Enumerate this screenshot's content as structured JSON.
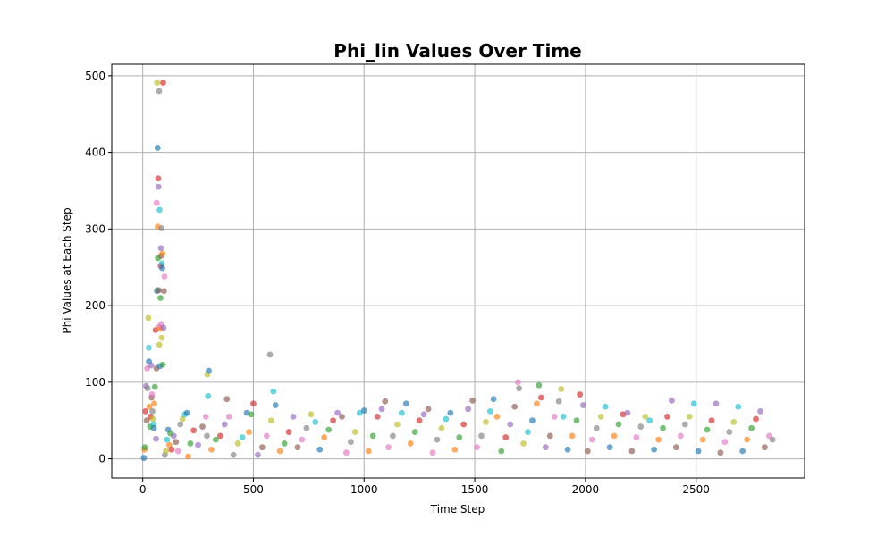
{
  "chart_data": {
    "type": "scatter",
    "title": "Phi_lin Values Over Time",
    "xlabel": "Time Step",
    "ylabel": "Phi Values at Each Step",
    "xlim": [
      -140,
      2990
    ],
    "ylim": [
      -25,
      515
    ],
    "x_ticks": [
      0,
      500,
      1000,
      1500,
      2000,
      2500
    ],
    "y_ticks": [
      0,
      100,
      200,
      300,
      400,
      500
    ],
    "grid": true,
    "legend": "none",
    "marker_alpha": 0.65,
    "colors": [
      "#1f77b4",
      "#ff7f0e",
      "#2ca02c",
      "#d62728",
      "#9467bd",
      "#8c564b",
      "#e377c2",
      "#7f7f7f",
      "#bcbd22",
      "#17becf"
    ],
    "points": [
      [
        5,
        1
      ],
      [
        8,
        12
      ],
      [
        9,
        15
      ],
      [
        12,
        62
      ],
      [
        15,
        95
      ],
      [
        18,
        50
      ],
      [
        20,
        118
      ],
      [
        22,
        92
      ],
      [
        25,
        184
      ],
      [
        27,
        145
      ],
      [
        28,
        127
      ],
      [
        30,
        68
      ],
      [
        33,
        42
      ],
      [
        35,
        55
      ],
      [
        38,
        122
      ],
      [
        40,
        80
      ],
      [
        42,
        84
      ],
      [
        44,
        62
      ],
      [
        46,
        52
      ],
      [
        48,
        45
      ],
      [
        50,
        40
      ],
      [
        52,
        72
      ],
      [
        55,
        94
      ],
      [
        58,
        168
      ],
      [
        60,
        26
      ],
      [
        62,
        118
      ],
      [
        63,
        334
      ],
      [
        64,
        219
      ],
      [
        65,
        491
      ],
      [
        66,
        220
      ],
      [
        67,
        406
      ],
      [
        68,
        303
      ],
      [
        69,
        262
      ],
      [
        70,
        366
      ],
      [
        71,
        355
      ],
      [
        72,
        220
      ],
      [
        73,
        172
      ],
      [
        74,
        480
      ],
      [
        75,
        149
      ],
      [
        76,
        325
      ],
      [
        78,
        121
      ],
      [
        79,
        170
      ],
      [
        80,
        210
      ],
      [
        81,
        252
      ],
      [
        82,
        275
      ],
      [
        83,
        265
      ],
      [
        84,
        176
      ],
      [
        85,
        301
      ],
      [
        86,
        158
      ],
      [
        87,
        255
      ],
      [
        88,
        249
      ],
      [
        89,
        268
      ],
      [
        90,
        123
      ],
      [
        92,
        491
      ],
      [
        94,
        171
      ],
      [
        96,
        219
      ],
      [
        98,
        238
      ],
      [
        100,
        5
      ],
      [
        105,
        10
      ],
      [
        110,
        25
      ],
      [
        115,
        38
      ],
      [
        120,
        18
      ],
      [
        125,
        33
      ],
      [
        130,
        12
      ],
      [
        140,
        30
      ],
      [
        150,
        22
      ],
      [
        160,
        10
      ],
      [
        170,
        45
      ],
      [
        180,
        52
      ],
      [
        190,
        58
      ],
      [
        200,
        60
      ],
      [
        205,
        3
      ],
      [
        215,
        20
      ],
      [
        230,
        37
      ],
      [
        250,
        18
      ],
      [
        270,
        42
      ],
      [
        285,
        55
      ],
      [
        290,
        30
      ],
      [
        292,
        110
      ],
      [
        295,
        82
      ],
      [
        298,
        115
      ],
      [
        310,
        12
      ],
      [
        330,
        25
      ],
      [
        350,
        30
      ],
      [
        370,
        45
      ],
      [
        380,
        78
      ],
      [
        390,
        55
      ],
      [
        410,
        5
      ],
      [
        430,
        20
      ],
      [
        450,
        28
      ],
      [
        470,
        60
      ],
      [
        480,
        35
      ],
      [
        490,
        58
      ],
      [
        500,
        72
      ],
      [
        520,
        5
      ],
      [
        540,
        15
      ],
      [
        560,
        30
      ],
      [
        575,
        136
      ],
      [
        580,
        50
      ],
      [
        590,
        88
      ],
      [
        600,
        70
      ],
      [
        620,
        10
      ],
      [
        640,
        20
      ],
      [
        660,
        35
      ],
      [
        680,
        55
      ],
      [
        700,
        15
      ],
      [
        720,
        25
      ],
      [
        740,
        40
      ],
      [
        760,
        58
      ],
      [
        780,
        48
      ],
      [
        800,
        12
      ],
      [
        820,
        28
      ],
      [
        840,
        38
      ],
      [
        860,
        50
      ],
      [
        880,
        60
      ],
      [
        900,
        55
      ],
      [
        920,
        8
      ],
      [
        940,
        22
      ],
      [
        960,
        35
      ],
      [
        980,
        60
      ],
      [
        1000,
        63
      ],
      [
        1020,
        10
      ],
      [
        1040,
        30
      ],
      [
        1060,
        55
      ],
      [
        1080,
        65
      ],
      [
        1095,
        75
      ],
      [
        1110,
        15
      ],
      [
        1130,
        30
      ],
      [
        1150,
        45
      ],
      [
        1170,
        60
      ],
      [
        1190,
        72
      ],
      [
        1210,
        20
      ],
      [
        1230,
        35
      ],
      [
        1250,
        50
      ],
      [
        1270,
        58
      ],
      [
        1290,
        65
      ],
      [
        1310,
        8
      ],
      [
        1330,
        25
      ],
      [
        1350,
        40
      ],
      [
        1370,
        52
      ],
      [
        1390,
        60
      ],
      [
        1410,
        12
      ],
      [
        1430,
        28
      ],
      [
        1450,
        45
      ],
      [
        1470,
        65
      ],
      [
        1490,
        76
      ],
      [
        1510,
        15
      ],
      [
        1530,
        30
      ],
      [
        1550,
        48
      ],
      [
        1570,
        62
      ],
      [
        1585,
        78
      ],
      [
        1600,
        55
      ],
      [
        1620,
        10
      ],
      [
        1640,
        28
      ],
      [
        1660,
        45
      ],
      [
        1680,
        68
      ],
      [
        1695,
        100
      ],
      [
        1700,
        92
      ],
      [
        1720,
        20
      ],
      [
        1740,
        35
      ],
      [
        1760,
        50
      ],
      [
        1780,
        72
      ],
      [
        1790,
        96
      ],
      [
        1800,
        80
      ],
      [
        1820,
        15
      ],
      [
        1840,
        30
      ],
      [
        1860,
        55
      ],
      [
        1880,
        75
      ],
      [
        1890,
        91
      ],
      [
        1900,
        55
      ],
      [
        1920,
        12
      ],
      [
        1940,
        30
      ],
      [
        1960,
        50
      ],
      [
        1975,
        84
      ],
      [
        1990,
        70
      ],
      [
        2010,
        10
      ],
      [
        2030,
        25
      ],
      [
        2050,
        40
      ],
      [
        2070,
        55
      ],
      [
        2090,
        68
      ],
      [
        2110,
        15
      ],
      [
        2130,
        30
      ],
      [
        2150,
        45
      ],
      [
        2170,
        58
      ],
      [
        2190,
        60
      ],
      [
        2210,
        10
      ],
      [
        2230,
        28
      ],
      [
        2250,
        42
      ],
      [
        2270,
        55
      ],
      [
        2290,
        50
      ],
      [
        2310,
        12
      ],
      [
        2330,
        25
      ],
      [
        2350,
        40
      ],
      [
        2370,
        55
      ],
      [
        2390,
        76
      ],
      [
        2410,
        15
      ],
      [
        2430,
        30
      ],
      [
        2450,
        45
      ],
      [
        2470,
        55
      ],
      [
        2490,
        72
      ],
      [
        2510,
        10
      ],
      [
        2530,
        25
      ],
      [
        2550,
        38
      ],
      [
        2570,
        50
      ],
      [
        2590,
        72
      ],
      [
        2610,
        8
      ],
      [
        2630,
        22
      ],
      [
        2650,
        35
      ],
      [
        2670,
        48
      ],
      [
        2690,
        68
      ],
      [
        2710,
        10
      ],
      [
        2730,
        25
      ],
      [
        2750,
        40
      ],
      [
        2770,
        52
      ],
      [
        2790,
        62
      ],
      [
        2810,
        15
      ],
      [
        2830,
        30
      ],
      [
        2845,
        25
      ]
    ]
  }
}
